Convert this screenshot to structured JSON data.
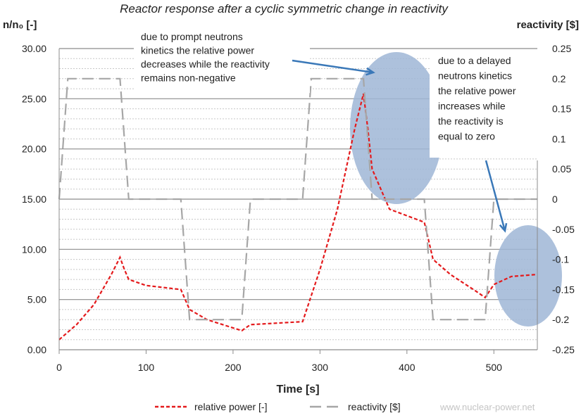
{
  "chart_data": {
    "type": "line",
    "title": "Reactor response after a cyclic symmetric change in reactivity",
    "xlabel": "Time [s]",
    "ylabel": "n/n₀ [-]",
    "y2label": "reactivity [$]",
    "xlim": [
      0,
      550
    ],
    "ylim": [
      0,
      30
    ],
    "y2lim": [
      -0.25,
      0.25
    ],
    "xticks": [
      0,
      100,
      200,
      300,
      400,
      500
    ],
    "yticks": [
      "0.00",
      "5.00",
      "10.00",
      "15.00",
      "20.00",
      "25.00",
      "30.00"
    ],
    "y2ticks": [
      "0.25",
      "0.2",
      "0.15",
      "0.1",
      "0.05",
      "0",
      "-0.05",
      "-0.1",
      "-0.15",
      "-0.2",
      "-0.25"
    ],
    "grid": {
      "major": true,
      "minor": true
    },
    "legend_position": "bottom",
    "series": [
      {
        "name": "relative power [-]",
        "axis": "left",
        "color": "#e41a1c",
        "style": "dashed",
        "x": [
          0,
          20,
          40,
          60,
          70,
          75,
          80,
          100,
          140,
          150,
          170,
          210,
          220,
          240,
          280,
          300,
          320,
          340,
          350,
          355,
          360,
          380,
          420,
          430,
          450,
          480,
          490,
          500,
          520,
          550
        ],
        "y": [
          1,
          2.5,
          4.5,
          7.5,
          9.2,
          8,
          7,
          6.4,
          6,
          4,
          3,
          1.9,
          2.5,
          2.6,
          2.8,
          8,
          14,
          22,
          25.5,
          22,
          18,
          14,
          12.7,
          9,
          7.5,
          5.8,
          5.2,
          6.5,
          7.3,
          7.5
        ]
      },
      {
        "name": "reactivity [$]",
        "axis": "right",
        "color": "#a6a6a6",
        "style": "long-dash",
        "x": [
          0,
          10,
          70,
          80,
          140,
          150,
          210,
          220,
          280,
          290,
          350,
          360,
          420,
          430,
          490,
          500,
          550
        ],
        "y": [
          0,
          0.2,
          0.2,
          0,
          0,
          -0.2,
          -0.2,
          0,
          0,
          0.2,
          0.2,
          0,
          0,
          -0.2,
          -0.2,
          0,
          0
        ]
      }
    ],
    "annotations": [
      {
        "lines": [
          "due to prompt neutrons",
          "kinetics the relative power",
          "decreases while the reactivity",
          "remains non-negative"
        ]
      },
      {
        "lines": [
          "due to a delayed",
          "neutrons kinetics",
          "the relative power",
          "increases  while",
          "the reactivity is",
          "equal to zero"
        ]
      }
    ],
    "highlight_color": "#9fb6d6",
    "arrow_color": "#3a78b8",
    "watermark": "www.nuclear-power.net"
  }
}
